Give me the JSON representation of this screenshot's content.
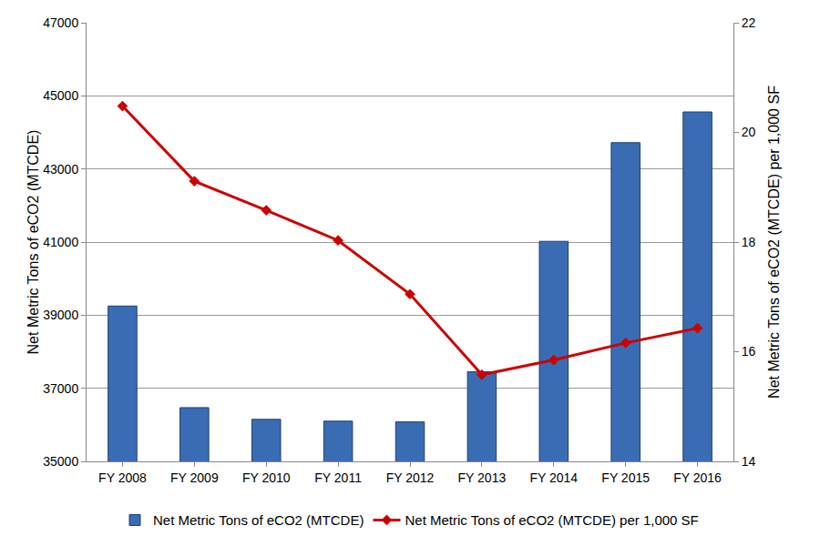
{
  "chart_data": {
    "type": "bar",
    "categories": [
      "FY 2008",
      "FY 2009",
      "FY 2010",
      "FY 2011",
      "FY 2012",
      "FY 2013",
      "FY 2014",
      "FY 2015",
      "FY 2016"
    ],
    "y_label": "Net Metric Tons of eCO2 (MTCDE)",
    "y2_label": "Net Metric Tons of eCO2 (MTCDE) per 1,000 SF",
    "series": [
      {
        "name": "Net Metric Tons of eCO2 (MTCDE)",
        "type": "bar",
        "color": "#3a6cb4",
        "values": [
          39250,
          36470,
          36150,
          36100,
          36080,
          37450,
          41020,
          43720,
          44560
        ]
      },
      {
        "name": "Net Metric Tons of eCO2 (MTCDE) per 1,000 SF",
        "type": "line",
        "axis": "y2",
        "color": "#cc0000",
        "marker": "diamond",
        "values": [
          20.48,
          19.11,
          18.58,
          18.03,
          17.05,
          15.58,
          15.85,
          16.16,
          16.43
        ]
      }
    ],
    "ylim": [
      35000,
      47000
    ],
    "yticks": [
      35000,
      37000,
      39000,
      41000,
      43000,
      45000,
      47000
    ],
    "y2lim": [
      14,
      22
    ],
    "y2ticks": [
      14,
      16,
      18,
      20,
      22
    ],
    "grid": true,
    "legend": "bottom"
  }
}
